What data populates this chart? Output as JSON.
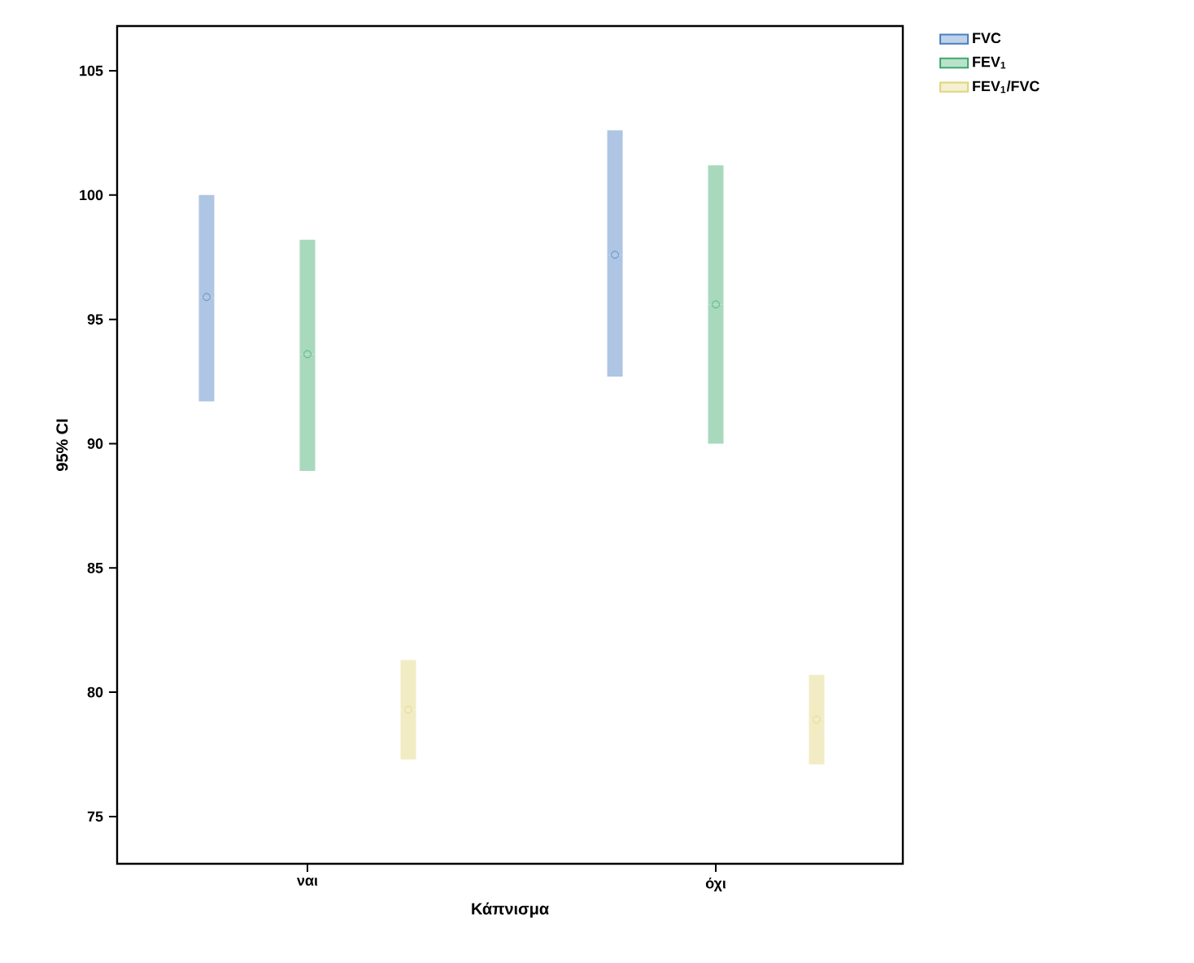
{
  "chart_data": {
    "type": "scatter",
    "xlabel": "Κάπνισμα",
    "ylabel": "95% CI",
    "categories": [
      "ναι",
      "όχι"
    ],
    "ylim": [
      73.1,
      106.8
    ],
    "yticks": [
      75,
      80,
      85,
      90,
      95,
      100,
      105
    ],
    "marker": "circle",
    "legend": "top right",
    "grid": false,
    "series": [
      {
        "name": "FVC",
        "color": "#4a7fc1",
        "values": [
          95.9,
          97.6
        ],
        "errors": [
          [
            91.7,
            100.0
          ],
          [
            92.7,
            102.6
          ]
        ]
      },
      {
        "name": "FEV$_{1}$",
        "color": "#3daa6a",
        "values": [
          93.6,
          95.6
        ],
        "errors": [
          [
            88.9,
            98.2
          ],
          [
            90.0,
            101.2
          ]
        ]
      },
      {
        "name": "FEV$_{1}$/FVC",
        "color": "#e0d47c",
        "values": [
          79.3,
          78.9
        ],
        "errors": [
          [
            77.3,
            81.3
          ],
          [
            77.1,
            80.7
          ]
        ]
      }
    ]
  }
}
